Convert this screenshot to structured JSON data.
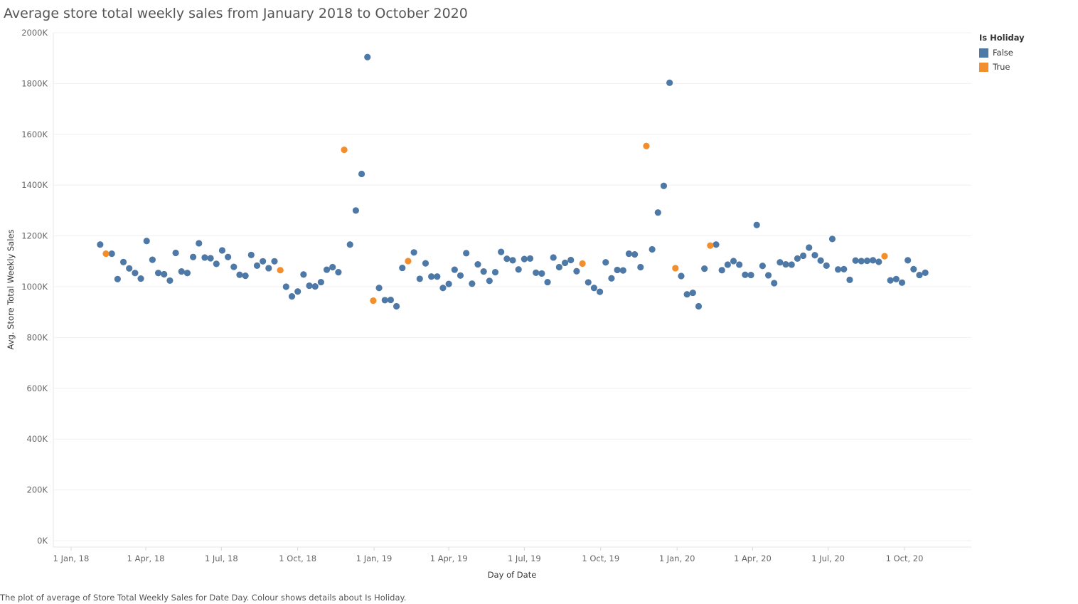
{
  "title": "Average store total weekly sales from January 2018 to October 2020",
  "caption": "The plot of average of Store Total Weekly Sales for Date Day. Colour shows details about Is Holiday.",
  "legend": {
    "title": "Is Holiday",
    "items": [
      {
        "label": "False",
        "color": "#4e79a7"
      },
      {
        "label": "True",
        "color": "#f28e2b"
      }
    ]
  },
  "chart_data": {
    "type": "scatter",
    "title": "Average store total weekly sales from January 2018 to October 2020",
    "xlabel": "Day of Date",
    "ylabel": "Avg. Store Total Weekly Sales",
    "ylim": [
      0,
      2000000
    ],
    "xlim": [
      "2018-01-01",
      "2020-12-31"
    ],
    "y_ticks": [
      "0K",
      "200K",
      "400K",
      "600K",
      "800K",
      "1000K",
      "1200K",
      "1400K",
      "1600K",
      "1800K",
      "2000K"
    ],
    "x_ticks": [
      {
        "label": "1 Jan, 18",
        "date": "2018-01-01"
      },
      {
        "label": "1 Apr, 18",
        "date": "2018-04-01"
      },
      {
        "label": "1 Jul, 18",
        "date": "2018-07-01"
      },
      {
        "label": "1 Oct, 18",
        "date": "2018-10-01"
      },
      {
        "label": "1 Jan, 19",
        "date": "2019-01-01"
      },
      {
        "label": "1 Apr, 19",
        "date": "2019-04-01"
      },
      {
        "label": "1 Jul, 19",
        "date": "2019-07-01"
      },
      {
        "label": "1 Oct, 19",
        "date": "2019-10-01"
      },
      {
        "label": "1 Jan, 20",
        "date": "2020-01-01"
      },
      {
        "label": "1 Apr, 20",
        "date": "2020-04-01"
      },
      {
        "label": "1 Jul, 20",
        "date": "2020-07-01"
      },
      {
        "label": "1 Oct, 20",
        "date": "2020-10-01"
      }
    ],
    "grid": "horizontal",
    "legend_position": "top-right",
    "series": [
      {
        "name": "False",
        "color": "#4e79a7",
        "points": [
          [
            "2018-02-05",
            1166000
          ],
          [
            "2018-02-19",
            1130000
          ],
          [
            "2018-02-26",
            1030000
          ],
          [
            "2018-03-05",
            1097000
          ],
          [
            "2018-03-12",
            1072000
          ],
          [
            "2018-03-19",
            1054000
          ],
          [
            "2018-03-26",
            1032000
          ],
          [
            "2018-04-02",
            1180000
          ],
          [
            "2018-04-09",
            1106000
          ],
          [
            "2018-04-16",
            1054000
          ],
          [
            "2018-04-23",
            1049000
          ],
          [
            "2018-04-30",
            1024000
          ],
          [
            "2018-05-07",
            1133000
          ],
          [
            "2018-05-14",
            1060000
          ],
          [
            "2018-05-21",
            1054000
          ],
          [
            "2018-05-28",
            1117000
          ],
          [
            "2018-06-04",
            1171000
          ],
          [
            "2018-06-11",
            1115000
          ],
          [
            "2018-06-18",
            1112000
          ],
          [
            "2018-06-25",
            1090000
          ],
          [
            "2018-07-02",
            1143000
          ],
          [
            "2018-07-09",
            1117000
          ],
          [
            "2018-07-16",
            1078000
          ],
          [
            "2018-07-23",
            1047000
          ],
          [
            "2018-07-30",
            1043000
          ],
          [
            "2018-08-06",
            1125000
          ],
          [
            "2018-08-13",
            1083000
          ],
          [
            "2018-08-20",
            1100000
          ],
          [
            "2018-08-27",
            1073000
          ],
          [
            "2018-09-03",
            1100000
          ],
          [
            "2018-09-17",
            1000000
          ],
          [
            "2018-09-24",
            962000
          ],
          [
            "2018-10-01",
            981000
          ],
          [
            "2018-10-08",
            1048000
          ],
          [
            "2018-10-15",
            1004000
          ],
          [
            "2018-10-22",
            1001000
          ],
          [
            "2018-10-29",
            1018000
          ],
          [
            "2018-11-05",
            1067000
          ],
          [
            "2018-11-12",
            1077000
          ],
          [
            "2018-11-19",
            1057000
          ],
          [
            "2018-12-03",
            1166000
          ],
          [
            "2018-12-10",
            1300000
          ],
          [
            "2018-12-17",
            1444000
          ],
          [
            "2018-12-24",
            1904000
          ],
          [
            "2019-01-07",
            995000
          ],
          [
            "2019-01-14",
            947000
          ],
          [
            "2019-01-21",
            948000
          ],
          [
            "2019-01-28",
            923000
          ],
          [
            "2019-02-04",
            1074000
          ],
          [
            "2019-02-18",
            1135000
          ],
          [
            "2019-02-25",
            1031000
          ],
          [
            "2019-03-04",
            1092000
          ],
          [
            "2019-03-11",
            1040000
          ],
          [
            "2019-03-18",
            1040000
          ],
          [
            "2019-03-25",
            995000
          ],
          [
            "2019-04-01",
            1011000
          ],
          [
            "2019-04-08",
            1067000
          ],
          [
            "2019-04-15",
            1044000
          ],
          [
            "2019-04-22",
            1132000
          ],
          [
            "2019-04-29",
            1012000
          ],
          [
            "2019-05-06",
            1088000
          ],
          [
            "2019-05-13",
            1060000
          ],
          [
            "2019-05-20",
            1023000
          ],
          [
            "2019-05-27",
            1057000
          ],
          [
            "2019-06-03",
            1137000
          ],
          [
            "2019-06-10",
            1110000
          ],
          [
            "2019-06-17",
            1104000
          ],
          [
            "2019-06-24",
            1068000
          ],
          [
            "2019-07-01",
            1109000
          ],
          [
            "2019-07-08",
            1111000
          ],
          [
            "2019-07-15",
            1055000
          ],
          [
            "2019-07-22",
            1052000
          ],
          [
            "2019-07-29",
            1018000
          ],
          [
            "2019-08-05",
            1115000
          ],
          [
            "2019-08-12",
            1077000
          ],
          [
            "2019-08-19",
            1094000
          ],
          [
            "2019-08-26",
            1105000
          ],
          [
            "2019-09-02",
            1061000
          ],
          [
            "2019-09-16",
            1017000
          ],
          [
            "2019-09-23",
            995000
          ],
          [
            "2019-09-30",
            980000
          ],
          [
            "2019-10-07",
            1096000
          ],
          [
            "2019-10-14",
            1033000
          ],
          [
            "2019-10-21",
            1066000
          ],
          [
            "2019-10-28",
            1064000
          ],
          [
            "2019-11-04",
            1130000
          ],
          [
            "2019-11-11",
            1127000
          ],
          [
            "2019-11-18",
            1077000
          ],
          [
            "2019-12-02",
            1147000
          ],
          [
            "2019-12-09",
            1292000
          ],
          [
            "2019-12-16",
            1397000
          ],
          [
            "2019-12-23",
            1803000
          ],
          [
            "2020-01-06",
            1042000
          ],
          [
            "2020-01-13",
            970000
          ],
          [
            "2020-01-20",
            976000
          ],
          [
            "2020-01-27",
            923000
          ],
          [
            "2020-02-03",
            1071000
          ],
          [
            "2020-02-17",
            1166000
          ],
          [
            "2020-02-24",
            1065000
          ],
          [
            "2020-03-02",
            1087000
          ],
          [
            "2020-03-09",
            1101000
          ],
          [
            "2020-03-16",
            1087000
          ],
          [
            "2020-03-23",
            1047000
          ],
          [
            "2020-03-30",
            1046000
          ],
          [
            "2020-04-06",
            1243000
          ],
          [
            "2020-04-13",
            1082000
          ],
          [
            "2020-04-20",
            1045000
          ],
          [
            "2020-04-27",
            1014000
          ],
          [
            "2020-05-04",
            1096000
          ],
          [
            "2020-05-11",
            1088000
          ],
          [
            "2020-05-18",
            1087000
          ],
          [
            "2020-05-25",
            1111000
          ],
          [
            "2020-06-01",
            1122000
          ],
          [
            "2020-06-08",
            1154000
          ],
          [
            "2020-06-15",
            1124000
          ],
          [
            "2020-06-22",
            1103000
          ],
          [
            "2020-06-29",
            1083000
          ],
          [
            "2020-07-06",
            1188000
          ],
          [
            "2020-07-13",
            1068000
          ],
          [
            "2020-07-20",
            1069000
          ],
          [
            "2020-07-27",
            1027000
          ],
          [
            "2020-08-03",
            1103000
          ],
          [
            "2020-08-10",
            1101000
          ],
          [
            "2020-08-17",
            1102000
          ],
          [
            "2020-08-24",
            1104000
          ],
          [
            "2020-08-31",
            1098000
          ],
          [
            "2020-09-14",
            1025000
          ],
          [
            "2020-09-21",
            1030000
          ],
          [
            "2020-09-28",
            1016000
          ],
          [
            "2020-10-05",
            1104000
          ],
          [
            "2020-10-12",
            1069000
          ],
          [
            "2020-10-19",
            1046000
          ],
          [
            "2020-10-26",
            1055000
          ]
        ]
      },
      {
        "name": "True",
        "color": "#f28e2b",
        "points": [
          [
            "2018-02-12",
            1130000
          ],
          [
            "2018-09-10",
            1065000
          ],
          [
            "2018-11-26",
            1539000
          ],
          [
            "2018-12-31",
            945000
          ],
          [
            "2019-02-11",
            1101000
          ],
          [
            "2019-09-09",
            1091000
          ],
          [
            "2019-11-25",
            1554000
          ],
          [
            "2019-12-30",
            1073000
          ],
          [
            "2020-02-10",
            1162000
          ],
          [
            "2020-09-07",
            1120000
          ]
        ]
      }
    ]
  }
}
